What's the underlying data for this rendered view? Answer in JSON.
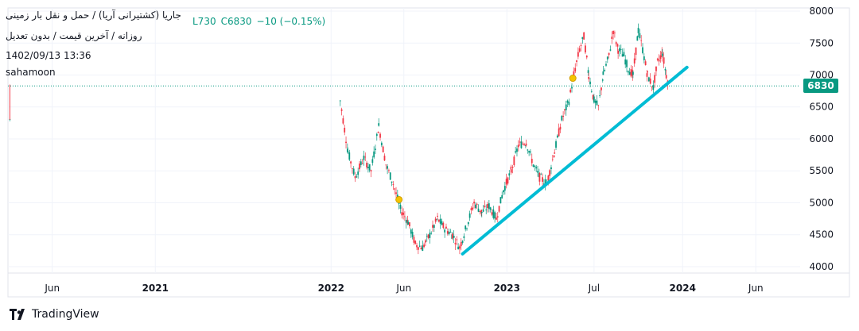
{
  "header": {
    "title": "جاریا (کشتیرانی آریا) / حمل و نقل بار زمینی",
    "subtitle": "روزانه / آخرین قیمت / بدون تعدیل",
    "datetime": "1402/09/13 13:36",
    "user": "sahamoon",
    "ohlc_fragment": "L730",
    "close": "C6830",
    "change": "−10 (−0.15%)"
  },
  "price_tag": "6830",
  "footer": {
    "brand": "TradingView"
  },
  "colors": {
    "up": "#089981",
    "down": "#f23645",
    "trend": "#00bcd4",
    "grid": "#f0f3fa",
    "marker": "#f5c400"
  },
  "chart_data": {
    "type": "candlestick",
    "y_ticks": [
      4000,
      4500,
      5000,
      5500,
      6000,
      6500,
      7000,
      7500,
      8000
    ],
    "ylim": [
      3900,
      8050
    ],
    "x_ticks": [
      "Jun",
      "2021",
      "2022",
      "Jun",
      "2023",
      "Jul",
      "2024",
      "Jun"
    ],
    "x_tick_dates": [
      "2020-06-01",
      "2021-01-01",
      "2022-01-01",
      "2022-06-01",
      "2023-01-01",
      "2023-07-01",
      "2024-01-01",
      "2024-06-01"
    ],
    "xlim": [
      "2020-03-01",
      "2024-09-01"
    ],
    "last_price": 6830,
    "price_path": [
      [
        "2020-03-05",
        6300
      ],
      [
        "2020-03-08",
        6850
      ],
      [
        "2022-01-20",
        6600
      ],
      [
        "2022-02-05",
        5800
      ],
      [
        "2022-02-20",
        5400
      ],
      [
        "2022-03-10",
        5700
      ],
      [
        "2022-03-25",
        5500
      ],
      [
        "2022-04-10",
        6200
      ],
      [
        "2022-04-25",
        5600
      ],
      [
        "2022-05-10",
        5300
      ],
      [
        "2022-05-25",
        4900
      ],
      [
        "2022-06-10",
        4700
      ],
      [
        "2022-06-25",
        4350
      ],
      [
        "2022-07-10",
        4300
      ],
      [
        "2022-07-25",
        4500
      ],
      [
        "2022-08-10",
        4750
      ],
      [
        "2022-08-25",
        4600
      ],
      [
        "2022-09-10",
        4500
      ],
      [
        "2022-09-25",
        4300
      ],
      [
        "2022-10-10",
        4650
      ],
      [
        "2022-10-25",
        5000
      ],
      [
        "2022-11-10",
        4850
      ],
      [
        "2022-11-25",
        4950
      ],
      [
        "2022-12-10",
        4750
      ],
      [
        "2022-12-25",
        5200
      ],
      [
        "2023-01-10",
        5500
      ],
      [
        "2023-01-25",
        5900
      ],
      [
        "2023-02-10",
        5950
      ],
      [
        "2023-02-25",
        5600
      ],
      [
        "2023-03-10",
        5400
      ],
      [
        "2023-03-25",
        5300
      ],
      [
        "2023-04-10",
        5800
      ],
      [
        "2023-04-25",
        6300
      ],
      [
        "2023-05-10",
        6600
      ],
      [
        "2023-05-20",
        7000
      ],
      [
        "2023-06-01",
        7400
      ],
      [
        "2023-06-10",
        7600
      ],
      [
        "2023-06-20",
        7000
      ],
      [
        "2023-07-01",
        6600
      ],
      [
        "2023-07-10",
        6500
      ],
      [
        "2023-07-20",
        7000
      ],
      [
        "2023-08-01",
        7300
      ],
      [
        "2023-08-10",
        7700
      ],
      [
        "2023-08-20",
        7400
      ],
      [
        "2023-09-01",
        7300
      ],
      [
        "2023-09-10",
        7100
      ],
      [
        "2023-09-20",
        7000
      ],
      [
        "2023-10-01",
        7700
      ],
      [
        "2023-10-10",
        7400
      ],
      [
        "2023-10-20",
        7000
      ],
      [
        "2023-11-01",
        6800
      ],
      [
        "2023-11-10",
        7200
      ],
      [
        "2023-11-20",
        7350
      ],
      [
        "2023-11-28",
        7000
      ],
      [
        "2023-12-04",
        6830
      ]
    ],
    "trendline": [
      [
        "2022-10-01",
        4200
      ],
      [
        "2024-01-10",
        7120
      ]
    ],
    "markers": [
      [
        "2022-05-22",
        5050
      ],
      [
        "2023-05-18",
        6950
      ]
    ]
  }
}
